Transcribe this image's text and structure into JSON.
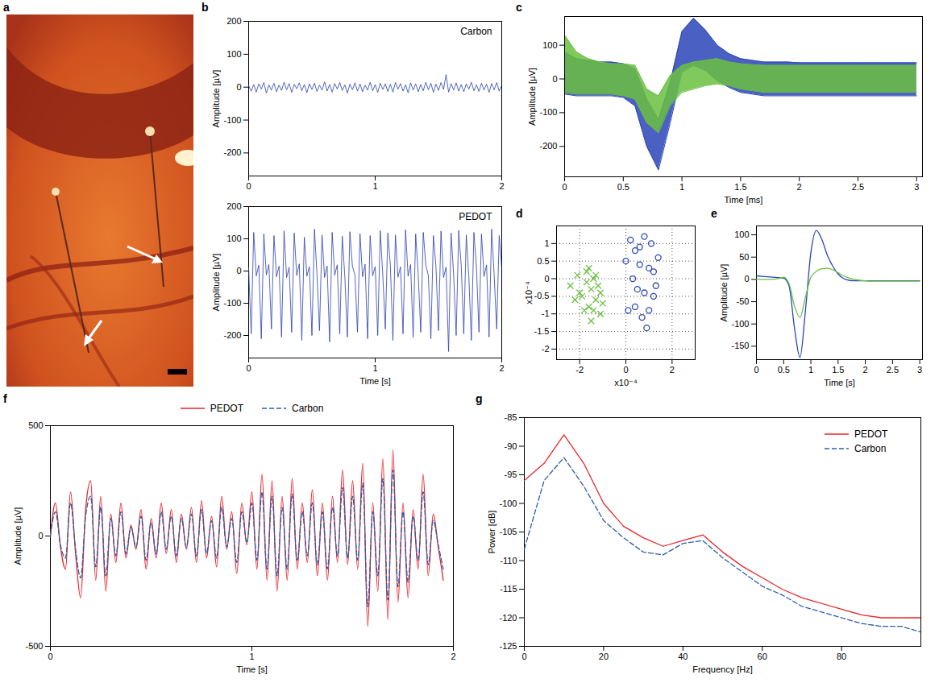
{
  "chart_data": [
    {
      "panel": "a",
      "type": "image"
    },
    {
      "panel": "b",
      "type": "line",
      "x_label": "Time [s]",
      "y_label": "Amplitude [µV]",
      "x": [
        0,
        0.02,
        0.04,
        0.06,
        0.08,
        0.1,
        0.12,
        0.14,
        0.16,
        0.18,
        0.2,
        0.22,
        0.24,
        0.26,
        0.28,
        0.3,
        0.32,
        0.34,
        0.36,
        0.38,
        0.4,
        0.42,
        0.44,
        0.46,
        0.48,
        0.5,
        0.52,
        0.54,
        0.56,
        0.58,
        0.6,
        0.62,
        0.64,
        0.66,
        0.68,
        0.7,
        0.72,
        0.74,
        0.76,
        0.78,
        0.8,
        0.82,
        0.84,
        0.86,
        0.88,
        0.9,
        0.92,
        0.94,
        0.96,
        0.98,
        1,
        1.02,
        1.04,
        1.06,
        1.08,
        1.1,
        1.12,
        1.14,
        1.16,
        1.18,
        1.2,
        1.22,
        1.24,
        1.26,
        1.28,
        1.3,
        1.32,
        1.34,
        1.36,
        1.38,
        1.4,
        1.42,
        1.44,
        1.46,
        1.48,
        1.5,
        1.52,
        1.54,
        1.56,
        1.58,
        1.6,
        1.62,
        1.64,
        1.66,
        1.68,
        1.7,
        1.72,
        1.74,
        1.76,
        1.78,
        1.8,
        1.82,
        1.84,
        1.86,
        1.88,
        1.9,
        1.92,
        1.94,
        1.96,
        1.98,
        2
      ],
      "series": [
        {
          "name": "Carbon",
          "color": "#2a3fb0",
          "values": [
            5,
            -12,
            8,
            -15,
            10,
            -6,
            14,
            -18,
            7,
            -9,
            12,
            -14,
            6,
            -10,
            15,
            -8,
            11,
            -16,
            9,
            -5,
            13,
            -11,
            8,
            -17,
            10,
            -7,
            12,
            -13,
            6,
            -9,
            16,
            -12,
            8,
            -15,
            11,
            -6,
            14,
            -10,
            7,
            -18,
            9,
            -8,
            13,
            -12,
            10,
            -14,
            6,
            -9,
            15,
            -11,
            8,
            -16,
            12,
            -7,
            10,
            -13,
            9,
            -15,
            14,
            -6,
            11,
            -12,
            7,
            -17,
            13,
            -9,
            10,
            -14,
            8,
            -11,
            15,
            -8,
            12,
            -16,
            9,
            -10,
            14,
            -7,
            38,
            -15,
            11,
            -9,
            13,
            -12,
            8,
            -14,
            10,
            -6,
            15,
            -11,
            7,
            -13,
            12,
            -9,
            9,
            -16,
            11,
            -8,
            14,
            -12,
            5
          ]
        },
        {
          "name": "PEDOT",
          "color": "#2a3fb0",
          "values": [
            10,
            -195,
            120,
            -15,
            18,
            -210,
            115,
            -12,
            20,
            -180,
            110,
            -18,
            15,
            -205,
            125,
            -20,
            12,
            -190,
            118,
            -14,
            22,
            -215,
            105,
            -16,
            14,
            -200,
            130,
            -10,
            -185,
            112,
            -20,
            16,
            -220,
            120,
            -13,
            19,
            -195,
            108,
            -17,
            -205,
            122,
            15,
            -12,
            -190,
            116,
            -18,
            21,
            -210,
            110,
            -15,
            14,
            -200,
            125,
            -11,
            -180,
            118,
            17,
            -215,
            112,
            -19,
            13,
            -195,
            128,
            -16,
            20,
            -205,
            115,
            -12,
            -190,
            120,
            18,
            -14,
            -210,
            110,
            15,
            -185,
            124,
            -20,
            12,
            -250,
            118,
            -13,
            -200,
            126,
            16,
            -195,
            112,
            -18,
            -215,
            120,
            14,
            -190,
            115,
            -17,
            19,
            -205,
            130,
            -12,
            -180,
            110,
            12
          ]
        }
      ],
      "xlim": [
        0,
        2
      ],
      "xticks": [
        0,
        1,
        2
      ],
      "ylim": [
        -270,
        200
      ],
      "yticks": [
        -200,
        -100,
        0,
        100,
        200
      ]
    },
    {
      "panel": "c",
      "type": "area",
      "x_label": "Time [ms]",
      "y_label": "Amplitude [µV]",
      "x": [
        0,
        0.1,
        0.2,
        0.3,
        0.4,
        0.5,
        0.6,
        0.7,
        0.8,
        0.9,
        1,
        1.1,
        1.2,
        1.3,
        1.4,
        1.5,
        1.6,
        1.7,
        1.8,
        1.9,
        2,
        2.1,
        2.2,
        2.3,
        2.4,
        2.5,
        2.6,
        2.7,
        2.8,
        2.9,
        3
      ],
      "series": [
        {
          "color": "#2a45b8",
          "lower": [
            -45,
            -50,
            -50,
            -50,
            -50,
            -55,
            -80,
            -200,
            -270,
            -130,
            20,
            40,
            25,
            -5,
            -25,
            -40,
            -45,
            -50,
            -50,
            -50,
            -50,
            -50,
            -50,
            -50,
            -50,
            -50,
            -50,
            -50,
            -50,
            -50,
            -50
          ],
          "upper": [
            80,
            60,
            55,
            50,
            50,
            45,
            30,
            -60,
            -120,
            -10,
            140,
            180,
            145,
            100,
            75,
            60,
            55,
            50,
            50,
            50,
            48,
            48,
            48,
            48,
            48,
            48,
            48,
            48,
            48,
            48,
            48
          ]
        },
        {
          "color": "#6abf3f",
          "lower": [
            -40,
            -45,
            -45,
            -45,
            -45,
            -50,
            -60,
            -130,
            -160,
            -80,
            -40,
            -30,
            -20,
            -15,
            -20,
            -30,
            -35,
            -40,
            -40,
            -40,
            -40,
            -40,
            -40,
            -40,
            -40,
            -40,
            -40,
            -40,
            -40,
            -40,
            -40
          ],
          "upper": [
            130,
            80,
            60,
            50,
            45,
            45,
            40,
            -30,
            -50,
            10,
            40,
            50,
            55,
            60,
            50,
            45,
            42,
            40,
            40,
            40,
            40,
            40,
            40,
            40,
            40,
            40,
            40,
            40,
            40,
            40,
            40
          ]
        }
      ],
      "xlim": [
        0,
        3.05
      ],
      "xticks": [
        0,
        0.5,
        1,
        1.5,
        2,
        2.5,
        3
      ],
      "ylim": [
        -290,
        185
      ],
      "yticks": [
        -200,
        -100,
        0,
        100
      ]
    },
    {
      "panel": "d",
      "type": "scatter",
      "x_label": "x10⁻⁴",
      "y_label": "x10⁻⁴",
      "grid": true,
      "series": [
        {
          "color": "#6abf3f",
          "marker": "x",
          "x": [
            -2.4,
            -2.1,
            -1.9,
            -1.7,
            -1.6,
            -1.5,
            -1.4,
            -1.3,
            -1.2,
            -1.1,
            -1.0,
            -1.8,
            -2.0,
            -1.6,
            -1.3,
            -1.5,
            -1.1,
            -2.2,
            -1.7,
            -1.4
          ],
          "values": [
            -0.2,
            0.1,
            -0.5,
            0.2,
            -0.8,
            -0.3,
            0.0,
            -0.6,
            -0.2,
            -1.0,
            -0.7,
            -0.9,
            -0.4,
            0.3,
            0.1,
            -1.2,
            -0.4,
            -0.6,
            -0.1,
            -0.9
          ]
        },
        {
          "color": "#2a45b8",
          "marker": "circle",
          "x": [
            0.0,
            0.2,
            0.4,
            0.6,
            0.8,
            1.0,
            1.2,
            1.4,
            0.3,
            0.7,
            1.1,
            0.5,
            0.9,
            1.3,
            0.1,
            0.6,
            1.0,
            0.4,
            0.8,
            1.2
          ],
          "values": [
            0.5,
            1.1,
            -0.8,
            0.9,
            1.2,
            0.3,
            -0.5,
            0.6,
            0.0,
            -1.1,
            1.0,
            -0.3,
            -1.4,
            -0.2,
            -0.9,
            0.4,
            -0.9,
            0.8,
            -0.4,
            0.2
          ]
        }
      ],
      "xlim": [
        -3,
        3
      ],
      "xticks": [
        -2,
        0,
        2
      ],
      "ylim": [
        -2.3,
        1.5
      ],
      "yticks": [
        -2,
        -1.5,
        -1,
        -0.5,
        0,
        0.5,
        1
      ]
    },
    {
      "panel": "e",
      "type": "line",
      "x_label": "Time [s]",
      "y_label": "Amplitude [µV]",
      "x": [
        0,
        0.1,
        0.2,
        0.3,
        0.4,
        0.5,
        0.6,
        0.7,
        0.8,
        0.9,
        1,
        1.1,
        1.2,
        1.3,
        1.4,
        1.5,
        1.6,
        1.7,
        1.8,
        1.9,
        2,
        2.1,
        2.2,
        2.3,
        2.4,
        2.5,
        2.6,
        2.7,
        2.8,
        2.9,
        3
      ],
      "series": [
        {
          "color": "#2a45b8",
          "values": [
            8,
            7,
            6,
            5,
            4,
            3,
            -15,
            -110,
            -175,
            -70,
            60,
            110,
            90,
            55,
            30,
            12,
            2,
            -2,
            -3,
            -3,
            -3,
            -3,
            -3,
            -3,
            -3,
            -3,
            -3,
            -3,
            -3,
            -3,
            -3
          ]
        },
        {
          "color": "#6abf3f",
          "values": [
            0,
            0,
            0,
            0,
            2,
            5,
            -10,
            -60,
            -85,
            -40,
            5,
            18,
            24,
            25,
            22,
            15,
            8,
            3,
            0,
            -2,
            -3,
            -4,
            -4,
            -4,
            -4,
            -4,
            -4,
            -4,
            -4,
            -4,
            -4
          ]
        }
      ],
      "xlim": [
        0,
        3.05
      ],
      "xticks": [
        0,
        0.5,
        1,
        1.5,
        2,
        2.5,
        3
      ],
      "ylim": [
        -180,
        120
      ],
      "yticks": [
        -150,
        -100,
        -50,
        0,
        50,
        100
      ]
    },
    {
      "panel": "f",
      "type": "line",
      "x_label": "Time [s]",
      "y_label": "Amplitude [µV]",
      "legend": "top",
      "x": [
        0,
        0.025,
        0.05,
        0.075,
        0.1,
        0.125,
        0.15,
        0.175,
        0.2,
        0.225,
        0.25,
        0.275,
        0.3,
        0.325,
        0.35,
        0.375,
        0.4,
        0.425,
        0.45,
        0.475,
        0.5,
        0.525,
        0.55,
        0.575,
        0.6,
        0.625,
        0.65,
        0.675,
        0.7,
        0.725,
        0.75,
        0.775,
        0.8,
        0.825,
        0.85,
        0.875,
        0.9,
        0.925,
        0.95,
        0.975,
        1,
        1.025,
        1.05,
        1.075,
        1.1,
        1.125,
        1.15,
        1.175,
        1.2,
        1.225,
        1.25,
        1.275,
        1.3,
        1.325,
        1.35,
        1.375,
        1.4,
        1.425,
        1.45,
        1.475,
        1.5,
        1.525,
        1.55,
        1.575,
        1.6,
        1.625,
        1.65,
        1.675,
        1.7,
        1.725,
        1.75,
        1.775,
        1.8,
        1.825,
        1.85,
        1.875,
        1.9,
        1.925,
        1.95
      ],
      "series": [
        {
          "name": "PEDOT",
          "color": "#e8262b",
          "line_style": "solid",
          "values": [
            0,
            150,
            -50,
            -150,
            200,
            -80,
            -280,
            120,
            250,
            -200,
            180,
            -250,
            100,
            -120,
            150,
            -100,
            50,
            -60,
            120,
            -150,
            80,
            -100,
            150,
            -80,
            120,
            -120,
            100,
            -60,
            130,
            -120,
            160,
            -100,
            90,
            -140,
            180,
            -60,
            110,
            -170,
            150,
            -40,
            200,
            -150,
            280,
            -200,
            250,
            -250,
            180,
            -200,
            260,
            -150,
            150,
            -120,
            210,
            -180,
            150,
            -200,
            180,
            -120,
            300,
            -130,
            250,
            -150,
            330,
            -410,
            150,
            -250,
            350,
            -380,
            390,
            -300,
            150,
            -280,
            120,
            -150,
            280,
            -180,
            100,
            -50,
            -200
          ]
        },
        {
          "name": "Carbon",
          "color": "#2c5ea8",
          "line_style": "dashed",
          "values": [
            0,
            110,
            -40,
            -100,
            150,
            -60,
            -190,
            90,
            180,
            -140,
            130,
            -180,
            80,
            -90,
            110,
            -80,
            40,
            -50,
            90,
            -110,
            60,
            -80,
            110,
            -60,
            90,
            -90,
            80,
            -50,
            100,
            -90,
            120,
            -80,
            70,
            -100,
            130,
            -50,
            80,
            -120,
            110,
            -30,
            150,
            -110,
            200,
            -150,
            180,
            -180,
            130,
            -150,
            190,
            -110,
            110,
            -90,
            150,
            -130,
            110,
            -150,
            130,
            -90,
            220,
            -100,
            180,
            -110,
            240,
            -320,
            110,
            -180,
            260,
            -290,
            300,
            -230,
            110,
            -210,
            90,
            -110,
            200,
            -130,
            70,
            -40,
            -150
          ]
        }
      ],
      "xlim": [
        0,
        2
      ],
      "xticks": [
        0,
        1,
        2
      ],
      "ylim": [
        -500,
        500
      ],
      "yticks": [
        -500,
        0,
        500
      ]
    },
    {
      "panel": "g",
      "type": "line",
      "x_label": "Frequency [Hz]",
      "y_label": "Power [dB]",
      "legend": "top-right",
      "x": [
        0,
        5,
        10,
        15,
        20,
        25,
        30,
        35,
        40,
        45,
        50,
        55,
        60,
        65,
        70,
        75,
        80,
        85,
        90,
        95,
        100
      ],
      "series": [
        {
          "name": "PEDOT",
          "color": "#e8262b",
          "line_style": "solid",
          "values": [
            -96,
            -93,
            -88,
            -93,
            -100,
            -104,
            -106,
            -107.5,
            -106.5,
            -105.5,
            -108.5,
            -111,
            -113,
            -115,
            -116.5,
            -117.5,
            -118.5,
            -119.5,
            -120,
            -120,
            -120
          ]
        },
        {
          "name": "Carbon",
          "color": "#2c5ea8",
          "line_style": "dashed",
          "values": [
            -108,
            -96,
            -92,
            -97,
            -103,
            -106,
            -108.5,
            -109,
            -107,
            -106.5,
            -109.5,
            -112,
            -114.5,
            -116,
            -118,
            -119,
            -120,
            -121,
            -121.5,
            -121.5,
            -122.5
          ]
        }
      ],
      "xlim": [
        0,
        100
      ],
      "xticks": [
        0,
        20,
        40,
        60,
        80
      ],
      "ylim": [
        -125,
        -85
      ],
      "yticks": [
        -125,
        -120,
        -115,
        -110,
        -105,
        -100,
        -95,
        -90,
        -85
      ]
    }
  ]
}
